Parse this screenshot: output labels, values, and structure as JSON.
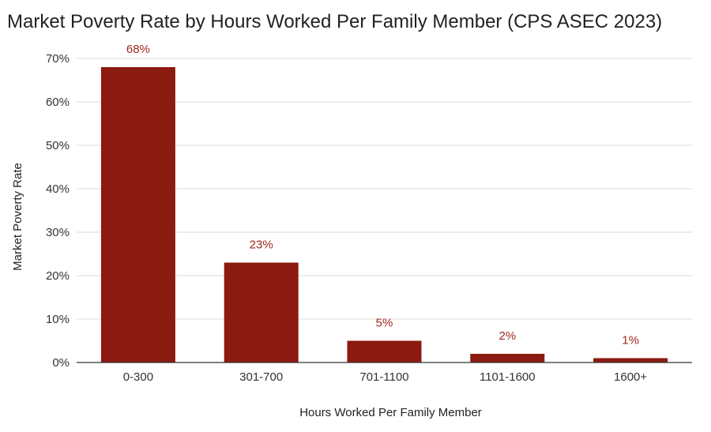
{
  "chart_data": {
    "type": "bar",
    "title": "Market Poverty Rate by Hours Worked Per Family Member (CPS ASEC 2023)",
    "xlabel": "Hours Worked Per Family Member",
    "ylabel": "Market Poverty Rate",
    "categories": [
      "0-300",
      "301-700",
      "701-1100",
      "1101-1600",
      "1600+"
    ],
    "values": [
      68,
      23,
      5,
      2,
      1
    ],
    "data_labels": [
      "68%",
      "23%",
      "5%",
      "2%",
      "1%"
    ],
    "ylim": [
      0,
      70
    ],
    "yticks": [
      "0%",
      "10%",
      "20%",
      "30%",
      "40%",
      "50%",
      "60%",
      "70%"
    ],
    "grid": true,
    "legend": "none",
    "colors": {
      "bar": "#8b1a10",
      "label": "#a0281c",
      "grid": "#d9d9d9",
      "axis": "#333333"
    }
  }
}
